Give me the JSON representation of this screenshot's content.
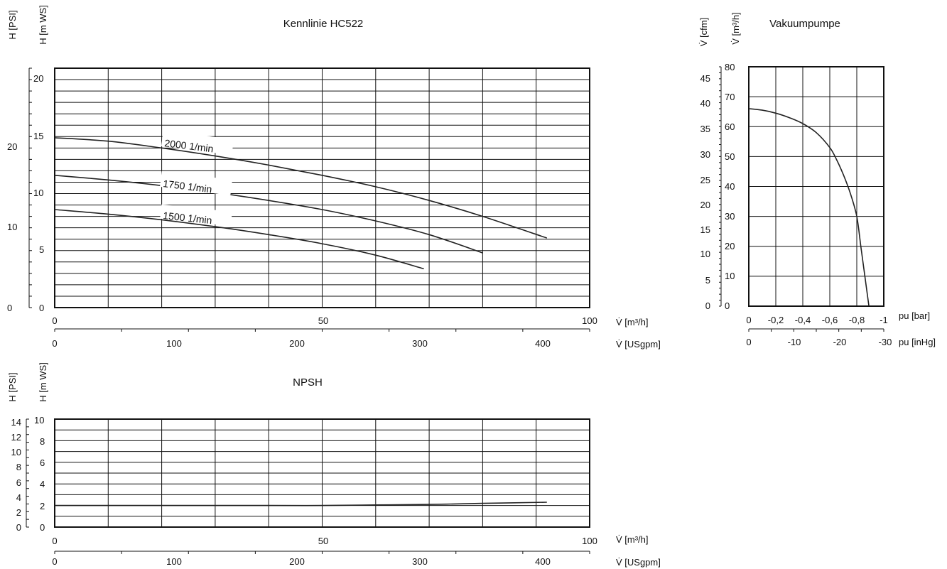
{
  "chart_data": [
    {
      "type": "line",
      "title": "Kennlinie HC522",
      "ylabel_left": "H [PSI]",
      "ylabel_right": "H [m WS]",
      "xlabel_primary": "V̇ [m³/h]",
      "xlabel_secondary": "V̇ [USgpm]",
      "xlim": [
        0,
        100
      ],
      "ylim": [
        0,
        21
      ],
      "y_psi_ticks": [
        "0",
        "10",
        "20"
      ],
      "y_mws_ticks": [
        "0",
        "5",
        "10",
        "15",
        "20"
      ],
      "x_m3h_ticks": [
        "0",
        "50",
        "100"
      ],
      "x_usgpm_ticks": [
        "0",
        "100",
        "200",
        "300",
        "400"
      ],
      "grid": true,
      "series": [
        {
          "name": "2000 1/min",
          "x": [
            0,
            10,
            20,
            30,
            40,
            50,
            60,
            70,
            80,
            92
          ],
          "y": [
            14.9,
            14.6,
            14.0,
            13.3,
            12.5,
            11.6,
            10.6,
            9.4,
            8.0,
            6.1
          ]
        },
        {
          "name": "1750 1/min",
          "x": [
            0,
            10,
            20,
            30,
            40,
            50,
            60,
            70,
            80
          ],
          "y": [
            11.6,
            11.2,
            10.7,
            10.1,
            9.4,
            8.6,
            7.6,
            6.4,
            4.8
          ]
        },
        {
          "name": "1500 1/min",
          "x": [
            0,
            10,
            20,
            30,
            40,
            50,
            60,
            69
          ],
          "y": [
            8.6,
            8.2,
            7.7,
            7.1,
            6.4,
            5.6,
            4.6,
            3.4
          ]
        }
      ]
    },
    {
      "type": "line",
      "title": "Vakuumpumpe",
      "ylabel_left": "V̇ [cfm]",
      "ylabel_right": "V̇ [m³/h]",
      "xlabel_primary": "pu [bar]",
      "xlabel_secondary": "pu [inHg]",
      "xlim": [
        0,
        -1
      ],
      "ylim": [
        0,
        80
      ],
      "y_cfm_ticks": [
        "0",
        "5",
        "10",
        "15",
        "20",
        "25",
        "30",
        "35",
        "40",
        "45"
      ],
      "y_m3h_ticks": [
        "0",
        "10",
        "20",
        "30",
        "40",
        "50",
        "60",
        "70",
        "80"
      ],
      "x_bar_ticks": [
        "0",
        "-0,2",
        "-0,4",
        "-0,6",
        "-0,8",
        "-1"
      ],
      "x_inhg_ticks": [
        "0",
        "-10",
        "-20",
        "-30"
      ],
      "grid": true,
      "series": [
        {
          "x": [
            0,
            -0.1,
            -0.2,
            -0.3,
            -0.4,
            -0.5,
            -0.6,
            -0.65,
            -0.7,
            -0.75,
            -0.8,
            -0.83,
            -0.86,
            -0.89
          ],
          "y": [
            66,
            65.5,
            64.5,
            63,
            61,
            58,
            53,
            49,
            44,
            38,
            30,
            20,
            10,
            0
          ]
        }
      ]
    },
    {
      "type": "line",
      "title": "NPSH",
      "ylabel_left": "H [PSI]",
      "ylabel_right": "H [m WS]",
      "xlabel_primary": "V̇ [m³/h]",
      "xlabel_secondary": "V̇ [USgpm]",
      "xlim": [
        0,
        100
      ],
      "ylim": [
        0,
        10
      ],
      "y_psi_ticks": [
        "0",
        "2",
        "4",
        "6",
        "8",
        "10",
        "12",
        "14"
      ],
      "y_mws_ticks": [
        "0",
        "2",
        "4",
        "6",
        "8",
        "10"
      ],
      "x_m3h_ticks": [
        "0",
        "50",
        "100"
      ],
      "x_usgpm_ticks": [
        "0",
        "100",
        "200",
        "300",
        "400"
      ],
      "grid": true,
      "series": [
        {
          "x": [
            0,
            20,
            40,
            50,
            60,
            70,
            80,
            92
          ],
          "y": [
            2.0,
            2.0,
            2.0,
            2.0,
            2.05,
            2.1,
            2.2,
            2.3
          ]
        }
      ]
    }
  ]
}
